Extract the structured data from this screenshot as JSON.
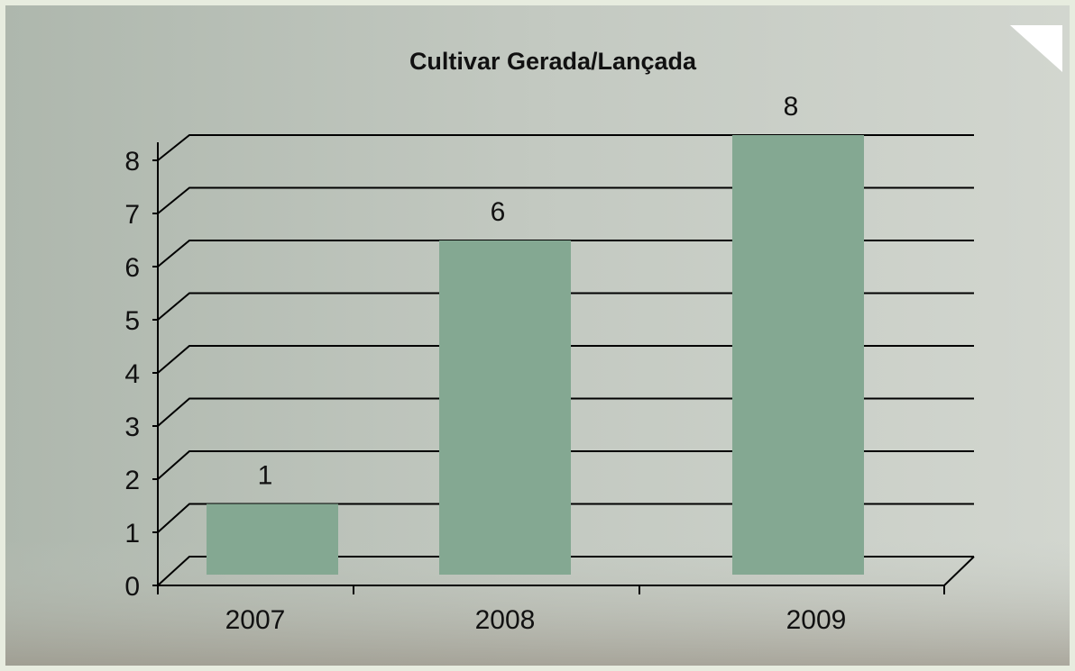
{
  "chart_data": {
    "type": "bar",
    "title": "Cultivar Gerada/Lançada",
    "categories": [
      "2007",
      "2008",
      "2009"
    ],
    "values": [
      1,
      6,
      8
    ],
    "color": "#84a892",
    "ylim": [
      0,
      8
    ],
    "yticks": [
      0,
      1,
      2,
      3,
      4,
      5,
      6,
      7,
      8
    ],
    "grid": true
  }
}
